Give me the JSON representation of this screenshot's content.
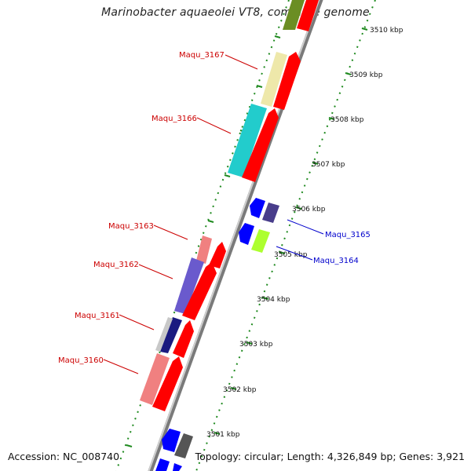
{
  "title": "Marinobacter aquaeolei VT8, complete genome",
  "footer": {
    "accession": "Accession: NC_008740",
    "summary": "Topology: circular; Length: 4,326,849 bp; Genes: 3,921"
  },
  "scale_labels": [
    "3510 kbp",
    "3509 kbp",
    "3508 kbp",
    "3507 kbp",
    "3506 kbp",
    "3505 kbp",
    "3504 kbp",
    "3503 kbp",
    "3502 kbp",
    "3501 kbp"
  ],
  "genes": [
    {
      "id": "g3167",
      "label": "Maqu_3167",
      "color": "#cc0000"
    },
    {
      "id": "g3166",
      "label": "Maqu_3166",
      "color": "#cc0000"
    },
    {
      "id": "g3163",
      "label": "Maqu_3163",
      "color": "#cc0000"
    },
    {
      "id": "g3162",
      "label": "Maqu_3162",
      "color": "#cc0000"
    },
    {
      "id": "g3161",
      "label": "Maqu_3161",
      "color": "#cc0000"
    },
    {
      "id": "g3160",
      "label": "Maqu_3160",
      "color": "#cc0000"
    },
    {
      "id": "g3165",
      "label": "Maqu_3165",
      "color": "#0000cc"
    },
    {
      "id": "g3164",
      "label": "Maqu_3164",
      "color": "#0000cc"
    }
  ],
  "colors": {
    "backbone": "#888888",
    "forward_cds": "#ff0000",
    "reverse_cds": "#0000ff",
    "tick_green": "#008800"
  }
}
